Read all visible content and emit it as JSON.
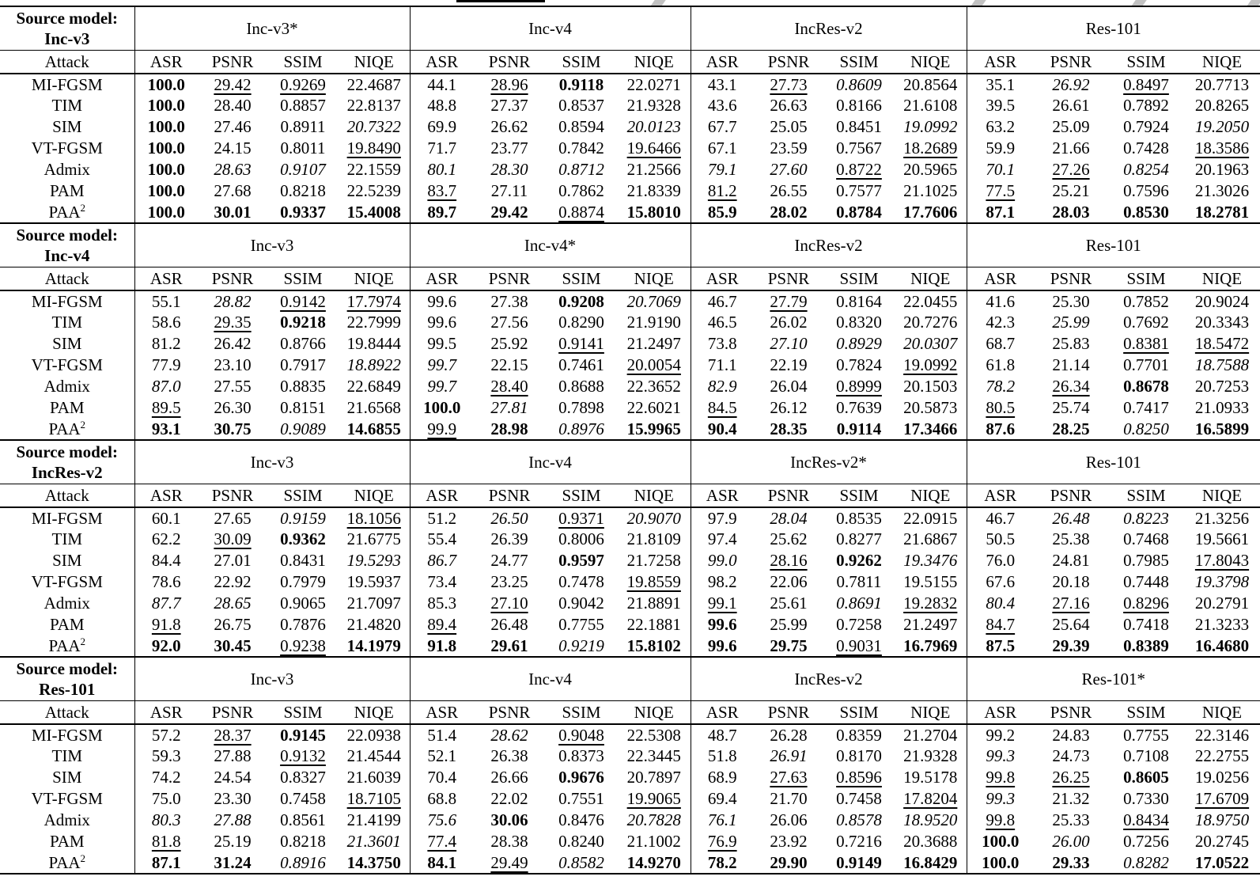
{
  "table": {
    "source_label": "Source model:",
    "attack_header": "Attack",
    "metrics": [
      "ASR",
      "PSNR",
      "SSIM",
      "NIQE"
    ],
    "style_legend": {
      "b": "bold-best",
      "u": "underline-second",
      "i": "italic-third"
    },
    "sections": [
      {
        "source_model": "Inc-v3",
        "groups": [
          "Inc-v3*",
          "Inc-v4",
          "IncRes-v2",
          "Res-101"
        ],
        "rows": [
          {
            "attack": "MI-FGSM",
            "cells": [
              "b|100.0",
              "u|29.42",
              "u|0.9269",
              "22.4687",
              "44.1",
              "u|28.96",
              "b|0.9118",
              "22.0271",
              "43.1",
              "u|27.73",
              "i|0.8609",
              "20.8564",
              "35.1",
              "i|26.92",
              "u|0.8497",
              "20.7713"
            ]
          },
          {
            "attack": "TIM",
            "cells": [
              "b|100.0",
              "28.40",
              "0.8857",
              "22.8137",
              "48.8",
              "27.37",
              "0.8537",
              "21.9328",
              "43.6",
              "26.63",
              "0.8166",
              "21.6108",
              "39.5",
              "26.61",
              "0.7892",
              "20.8265"
            ]
          },
          {
            "attack": "SIM",
            "cells": [
              "b|100.0",
              "27.46",
              "0.8911",
              "i|20.7322",
              "69.9",
              "26.62",
              "0.8594",
              "i|20.0123",
              "67.7",
              "25.05",
              "0.8451",
              "i|19.0992",
              "63.2",
              "25.09",
              "0.7924",
              "i|19.2050"
            ]
          },
          {
            "attack": "VT-FGSM",
            "cells": [
              "b|100.0",
              "24.15",
              "0.8011",
              "u|19.8490",
              "71.7",
              "23.77",
              "0.7842",
              "u|19.6466",
              "67.1",
              "23.59",
              "0.7567",
              "u|18.2689",
              "59.9",
              "21.66",
              "0.7428",
              "u|18.3586"
            ]
          },
          {
            "attack": "Admix",
            "cells": [
              "b|100.0",
              "i|28.63",
              "i|0.9107",
              "22.1559",
              "i|80.1",
              "i|28.30",
              "i|0.8712",
              "21.2566",
              "i|79.1",
              "i|27.60",
              "u|0.8722",
              "20.5965",
              "i|70.1",
              "u|27.26",
              "i|0.8254",
              "20.1963"
            ]
          },
          {
            "attack": "PAM",
            "cells": [
              "b|100.0",
              "27.68",
              "0.8218",
              "22.5239",
              "u|83.7",
              "27.11",
              "0.7862",
              "21.8339",
              "u|81.2",
              "26.55",
              "0.7577",
              "21.1025",
              "u|77.5",
              "25.21",
              "0.7596",
              "21.3026"
            ]
          },
          {
            "attack": "PAA^2",
            "cells": [
              "b|100.0",
              "b|30.01",
              "b|0.9337",
              "b|15.4008",
              "b|89.7",
              "b|29.42",
              "u|0.8874",
              "b|15.8010",
              "b|85.9",
              "b|28.02",
              "b|0.8784",
              "b|17.7606",
              "b|87.1",
              "b|28.03",
              "b|0.8530",
              "b|18.2781"
            ]
          }
        ]
      },
      {
        "source_model": "Inc-v4",
        "groups": [
          "Inc-v3",
          "Inc-v4*",
          "IncRes-v2",
          "Res-101"
        ],
        "rows": [
          {
            "attack": "MI-FGSM",
            "cells": [
              "55.1",
              "i|28.82",
              "u|0.9142",
              "u|17.7974",
              "99.6",
              "27.38",
              "b|0.9208",
              "i|20.7069",
              "46.7",
              "u|27.79",
              "0.8164",
              "22.0455",
              "41.6",
              "25.30",
              "0.7852",
              "20.9024"
            ]
          },
          {
            "attack": "TIM",
            "cells": [
              "58.6",
              "u|29.35",
              "b|0.9218",
              "22.7999",
              "99.6",
              "27.56",
              "0.8290",
              "21.9190",
              "46.5",
              "26.02",
              "0.8320",
              "20.7276",
              "42.3",
              "i|25.99",
              "0.7692",
              "20.3343"
            ]
          },
          {
            "attack": "SIM",
            "cells": [
              "81.2",
              "26.42",
              "0.8766",
              "19.8444",
              "99.5",
              "25.92",
              "u|0.9141",
              "21.2497",
              "73.8",
              "i|27.10",
              "i|0.8929",
              "i|20.0307",
              "68.7",
              "25.83",
              "u|0.8381",
              "u|18.5472"
            ]
          },
          {
            "attack": "VT-FGSM",
            "cells": [
              "77.9",
              "23.10",
              "0.7917",
              "i|18.8922",
              "i|99.7",
              "22.15",
              "0.7461",
              "u|20.0054",
              "71.1",
              "22.19",
              "0.7824",
              "u|19.0992",
              "61.8",
              "21.14",
              "0.7701",
              "i|18.7588"
            ]
          },
          {
            "attack": "Admix",
            "cells": [
              "i|87.0",
              "27.55",
              "0.8835",
              "22.6849",
              "i|99.7",
              "u|28.40",
              "0.8688",
              "22.3652",
              "i|82.9",
              "26.04",
              "u|0.8999",
              "20.1503",
              "i|78.2",
              "u|26.34",
              "b|0.8678",
              "20.7253"
            ]
          },
          {
            "attack": "PAM",
            "cells": [
              "u|89.5",
              "26.30",
              "0.8151",
              "21.6568",
              "b|100.0",
              "i|27.81",
              "0.7898",
              "22.6021",
              "u|84.5",
              "26.12",
              "0.7639",
              "20.5873",
              "u|80.5",
              "25.74",
              "0.7417",
              "21.0933"
            ]
          },
          {
            "attack": "PAA^2",
            "cells": [
              "b|93.1",
              "b|30.75",
              "i|0.9089",
              "b|14.6855",
              "u|99.9",
              "b|28.98",
              "i|0.8976",
              "b|15.9965",
              "b|90.4",
              "b|28.35",
              "b|0.9114",
              "b|17.3466",
              "b|87.6",
              "b|28.25",
              "i|0.8250",
              "b|16.5899"
            ]
          }
        ]
      },
      {
        "source_model": "IncRes-v2",
        "groups": [
          "Inc-v3",
          "Inc-v4",
          "IncRes-v2*",
          "Res-101"
        ],
        "rows": [
          {
            "attack": "MI-FGSM",
            "cells": [
              "60.1",
              "27.65",
              "i|0.9159",
              "u|18.1056",
              "51.2",
              "i|26.50",
              "u|0.9371",
              "i|20.9070",
              "97.9",
              "i|28.04",
              "0.8535",
              "22.0915",
              "46.7",
              "i|26.48",
              "i|0.8223",
              "21.3256"
            ]
          },
          {
            "attack": "TIM",
            "cells": [
              "62.2",
              "u|30.09",
              "b|0.9362",
              "21.6775",
              "55.4",
              "26.39",
              "0.8006",
              "21.8109",
              "97.4",
              "25.62",
              "0.8277",
              "21.6867",
              "50.5",
              "25.38",
              "0.7468",
              "19.5661"
            ]
          },
          {
            "attack": "SIM",
            "cells": [
              "84.4",
              "27.01",
              "0.8431",
              "i|19.5293",
              "i|86.7",
              "24.77",
              "b|0.9597",
              "21.7258",
              "i|99.0",
              "u|28.16",
              "b|0.9262",
              "i|19.3476",
              "76.0",
              "24.81",
              "0.7985",
              "u|17.8043"
            ]
          },
          {
            "attack": "VT-FGSM",
            "cells": [
              "78.6",
              "22.92",
              "0.7979",
              "19.5937",
              "73.4",
              "23.25",
              "0.7478",
              "u|19.8559",
              "98.2",
              "22.06",
              "0.7811",
              "19.5155",
              "67.6",
              "20.18",
              "0.7448",
              "i|19.3798"
            ]
          },
          {
            "attack": "Admix",
            "cells": [
              "i|87.7",
              "i|28.65",
              "0.9065",
              "21.7097",
              "85.3",
              "u|27.10",
              "0.9042",
              "21.8891",
              "u|99.1",
              "25.61",
              "i|0.8691",
              "u|19.2832",
              "i|80.4",
              "u|27.16",
              "u|0.8296",
              "20.2791"
            ]
          },
          {
            "attack": "PAM",
            "cells": [
              "u|91.8",
              "26.75",
              "0.7876",
              "21.4820",
              "u|89.4",
              "26.48",
              "0.7755",
              "22.1881",
              "b|99.6",
              "25.99",
              "0.7258",
              "21.2497",
              "u|84.7",
              "25.64",
              "0.7418",
              "21.3233"
            ]
          },
          {
            "attack": "PAA^2",
            "cells": [
              "b|92.0",
              "b|30.45",
              "u|0.9238",
              "b|14.1979",
              "b|91.8",
              "b|29.61",
              "i|0.9219",
              "b|15.8102",
              "b|99.6",
              "b|29.75",
              "u|0.9031",
              "b|16.7969",
              "b|87.5",
              "b|29.39",
              "b|0.8389",
              "b|16.4680"
            ]
          }
        ]
      },
      {
        "source_model": "Res-101",
        "groups": [
          "Inc-v3",
          "Inc-v4",
          "IncRes-v2",
          "Res-101*"
        ],
        "rows": [
          {
            "attack": "MI-FGSM",
            "cells": [
              "57.2",
              "u|28.37",
              "b|0.9145",
              "22.0938",
              "51.4",
              "i|28.62",
              "u|0.9048",
              "22.5308",
              "48.7",
              "26.28",
              "0.8359",
              "21.2704",
              "99.2",
              "24.83",
              "0.7755",
              "22.3146"
            ]
          },
          {
            "attack": "TIM",
            "cells": [
              "59.3",
              "27.88",
              "u|0.9132",
              "21.4544",
              "52.1",
              "26.38",
              "0.8373",
              "22.3445",
              "51.8",
              "i|26.91",
              "0.8170",
              "21.9328",
              "i|99.3",
              "24.73",
              "0.7108",
              "22.2755"
            ]
          },
          {
            "attack": "SIM",
            "cells": [
              "74.2",
              "24.54",
              "0.8327",
              "21.6039",
              "70.4",
              "26.66",
              "b|0.9676",
              "20.7897",
              "68.9",
              "u|27.63",
              "u|0.8596",
              "19.5178",
              "u|99.8",
              "u|26.25",
              "b|0.8605",
              "19.0256"
            ]
          },
          {
            "attack": "VT-FGSM",
            "cells": [
              "75.0",
              "23.30",
              "0.7458",
              "u|18.7105",
              "68.8",
              "22.02",
              "0.7551",
              "u|19.9065",
              "69.4",
              "21.70",
              "0.7458",
              "u|17.8204",
              "i|99.3",
              "21.32",
              "0.7330",
              "u|17.6709"
            ]
          },
          {
            "attack": "Admix",
            "cells": [
              "i|80.3",
              "i|27.88",
              "0.8561",
              "21.4199",
              "i|75.6",
              "b|30.06",
              "0.8476",
              "i|20.7828",
              "i|76.1",
              "26.06",
              "i|0.8578",
              "i|18.9520",
              "u|99.8",
              "25.33",
              "u|0.8434",
              "i|18.9750"
            ]
          },
          {
            "attack": "PAM",
            "cells": [
              "u|81.8",
              "25.19",
              "0.8218",
              "i|21.3601",
              "u|77.4",
              "28.38",
              "0.8240",
              "21.1002",
              "u|76.9",
              "23.92",
              "0.7216",
              "20.3688",
              "b|100.0",
              "i|26.00",
              "0.7256",
              "20.2745"
            ]
          },
          {
            "attack": "PAA^2",
            "cells": [
              "b|87.1",
              "b|31.24",
              "i|0.8916",
              "b|14.3750",
              "b|84.1",
              "u|29.49",
              "i|0.8582",
              "b|14.9270",
              "b|78.2",
              "b|29.90",
              "b|0.9149",
              "b|16.8429",
              "b|100.0",
              "b|29.33",
              "i|0.8282",
              "b|17.0522"
            ]
          }
        ]
      }
    ]
  }
}
